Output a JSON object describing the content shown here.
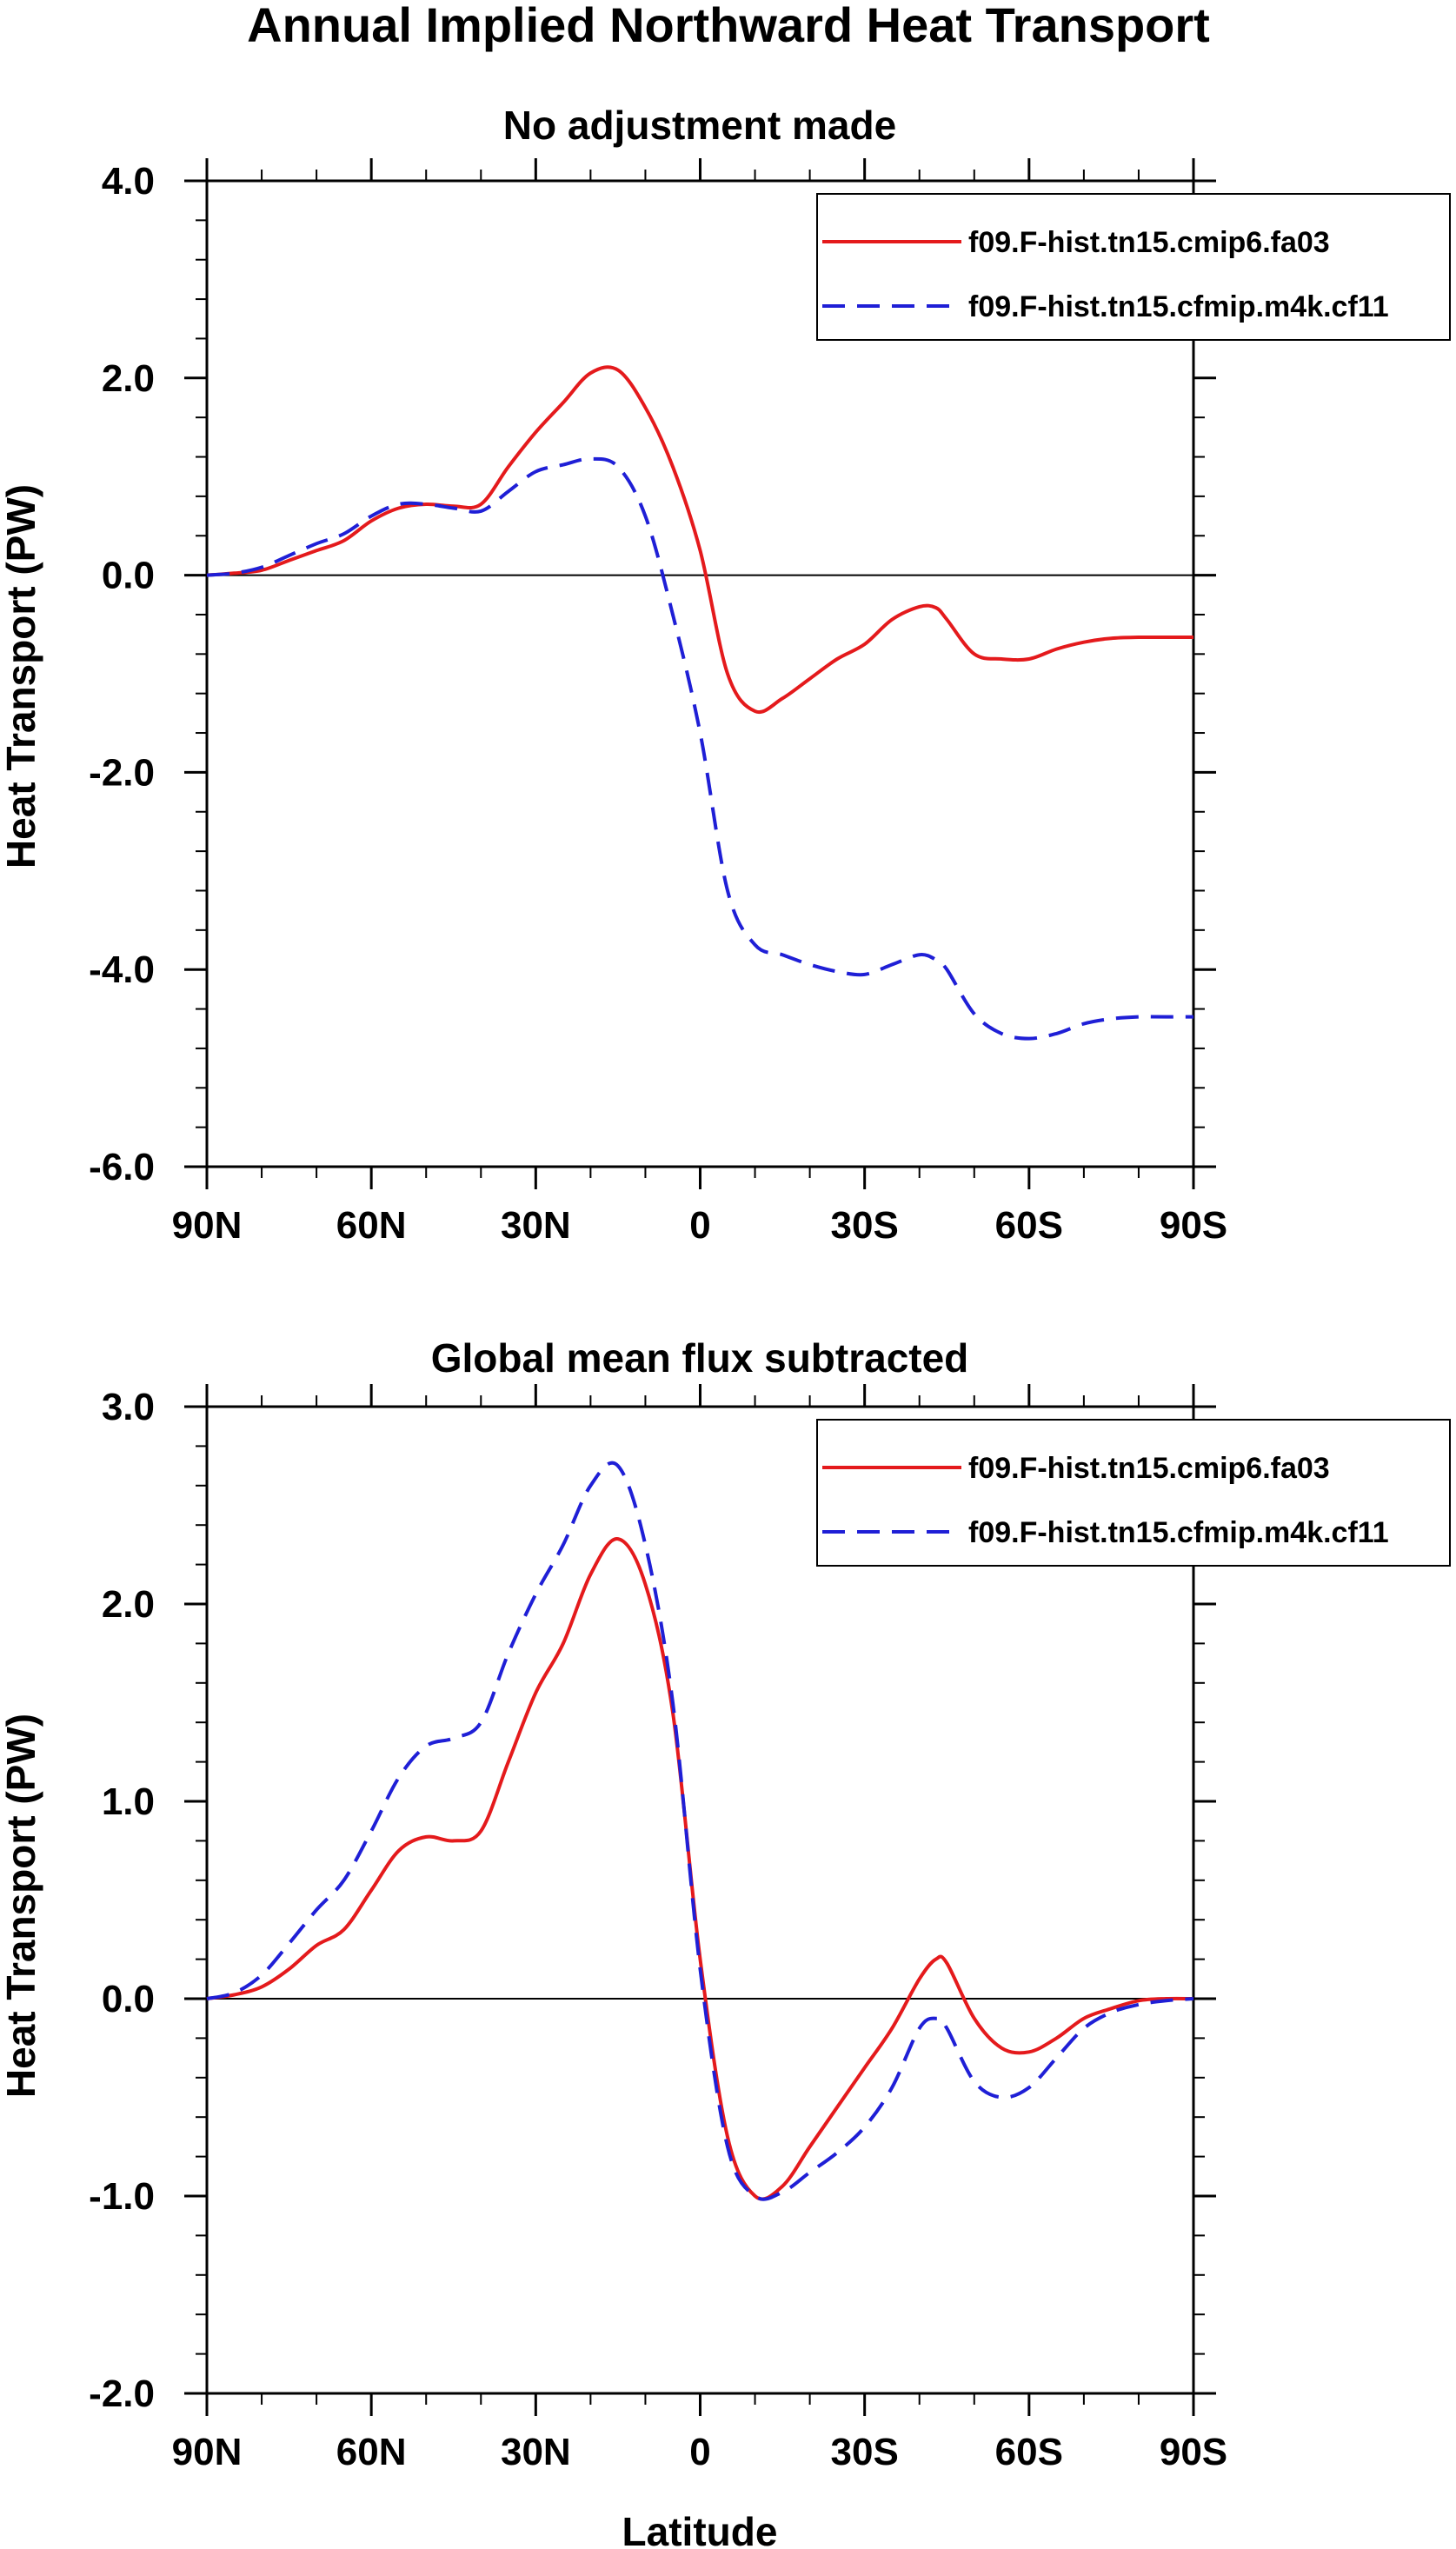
{
  "figure": {
    "title": "Annual Implied Northward Heat Transport",
    "xlabel": "Latitude"
  },
  "colors": {
    "series1": "#e41a1c",
    "series2": "#1f1fd6",
    "axis": "#000000"
  },
  "chart_data": [
    {
      "type": "line",
      "title": "No adjustment made",
      "xlabel": "",
      "ylabel": "Heat Transport (PW)",
      "xlim": [
        90,
        -90
      ],
      "ylim": [
        -6,
        4
      ],
      "xticks": [
        90,
        60,
        30,
        0,
        -30,
        -60,
        -90
      ],
      "xtick_labels": [
        "90N",
        "60N",
        "30N",
        "0",
        "30S",
        "60S",
        "90S"
      ],
      "yticks": [
        4,
        2,
        0,
        -2,
        -4,
        -6
      ],
      "ytick_labels": [
        "4.0",
        "2.0",
        "0.0",
        "-2.0",
        "-4.0",
        "-6.0"
      ],
      "legend_position": "top-right",
      "series": [
        {
          "name": "f09.F-hist.tn15.cmip6.fa03",
          "style": "solid",
          "x": [
            90,
            85,
            80,
            75,
            70,
            65,
            60,
            55,
            50,
            45,
            40,
            35,
            30,
            25,
            20,
            15,
            10,
            5,
            0,
            -5,
            -10,
            -15,
            -20,
            -25,
            -30,
            -35,
            -40,
            -43,
            -45,
            -50,
            -55,
            -60,
            -65,
            -70,
            -75,
            -80,
            -85,
            -90
          ],
          "y": [
            0,
            0.02,
            0.05,
            0.15,
            0.25,
            0.35,
            0.55,
            0.68,
            0.72,
            0.7,
            0.72,
            1.1,
            1.45,
            1.75,
            2.05,
            2.08,
            1.7,
            1.1,
            0.25,
            -1.0,
            -1.38,
            -1.25,
            -1.05,
            -0.85,
            -0.7,
            -0.45,
            -0.32,
            -0.33,
            -0.45,
            -0.8,
            -0.85,
            -0.85,
            -0.75,
            -0.68,
            -0.64,
            -0.63,
            -0.63,
            -0.63
          ]
        },
        {
          "name": "f09.F-hist.tn15.cfmip.m4k.cf11",
          "style": "dashed",
          "x": [
            90,
            85,
            80,
            75,
            70,
            65,
            60,
            55,
            50,
            45,
            40,
            35,
            30,
            25,
            20,
            15,
            10,
            5,
            0,
            -5,
            -10,
            -15,
            -20,
            -25,
            -30,
            -35,
            -40,
            -43,
            -45,
            -50,
            -55,
            -60,
            -65,
            -70,
            -75,
            -80,
            -85,
            -90
          ],
          "y": [
            0,
            0.02,
            0.08,
            0.2,
            0.32,
            0.42,
            0.6,
            0.72,
            0.72,
            0.68,
            0.65,
            0.85,
            1.05,
            1.12,
            1.18,
            1.1,
            0.6,
            -0.4,
            -1.6,
            -3.2,
            -3.75,
            -3.85,
            -3.95,
            -4.02,
            -4.05,
            -3.95,
            -3.85,
            -3.9,
            -4.0,
            -4.45,
            -4.65,
            -4.7,
            -4.65,
            -4.55,
            -4.5,
            -4.48,
            -4.48,
            -4.48
          ]
        }
      ]
    },
    {
      "type": "line",
      "title": "Global mean flux subtracted",
      "xlabel": "Latitude",
      "ylabel": "Heat Transport (PW)",
      "xlim": [
        90,
        -90
      ],
      "ylim": [
        -2,
        3
      ],
      "xticks": [
        90,
        60,
        30,
        0,
        -30,
        -60,
        -90
      ],
      "xtick_labels": [
        "90N",
        "60N",
        "30N",
        "0",
        "30S",
        "60S",
        "90S"
      ],
      "yticks": [
        3,
        2,
        1,
        0,
        -1,
        -2
      ],
      "ytick_labels": [
        "3.0",
        "2.0",
        "1.0",
        "0.0",
        "-1.0",
        "-2.0"
      ],
      "legend_position": "top-right",
      "series": [
        {
          "name": "f09.F-hist.tn15.cmip6.fa03",
          "style": "solid",
          "x": [
            90,
            85,
            80,
            75,
            70,
            65,
            60,
            55,
            50,
            45,
            40,
            35,
            30,
            25,
            20,
            15,
            10,
            5,
            0,
            -5,
            -10,
            -15,
            -20,
            -25,
            -30,
            -35,
            -40,
            -43,
            -45,
            -50,
            -55,
            -60,
            -65,
            -70,
            -75,
            -80,
            -85,
            -90
          ],
          "y": [
            0,
            0.02,
            0.06,
            0.15,
            0.27,
            0.35,
            0.55,
            0.75,
            0.82,
            0.8,
            0.85,
            1.2,
            1.55,
            1.8,
            2.15,
            2.33,
            2.1,
            1.45,
            0.2,
            -0.7,
            -1.0,
            -0.95,
            -0.75,
            -0.55,
            -0.35,
            -0.15,
            0.1,
            0.2,
            0.18,
            -0.1,
            -0.25,
            -0.27,
            -0.2,
            -0.1,
            -0.05,
            -0.01,
            0,
            0
          ]
        },
        {
          "name": "f09.F-hist.tn15.cfmip.m4k.cf11",
          "style": "dashed",
          "x": [
            90,
            85,
            80,
            75,
            70,
            65,
            60,
            55,
            50,
            45,
            40,
            35,
            30,
            25,
            20,
            15,
            10,
            5,
            0,
            -5,
            -10,
            -15,
            -20,
            -25,
            -30,
            -35,
            -40,
            -43,
            -45,
            -50,
            -55,
            -60,
            -65,
            -70,
            -75,
            -80,
            -85,
            -90
          ],
          "y": [
            0,
            0.03,
            0.12,
            0.28,
            0.45,
            0.6,
            0.85,
            1.12,
            1.28,
            1.32,
            1.4,
            1.75,
            2.05,
            2.3,
            2.6,
            2.7,
            2.3,
            1.5,
            0.15,
            -0.75,
            -1.0,
            -0.98,
            -0.88,
            -0.78,
            -0.65,
            -0.45,
            -0.15,
            -0.1,
            -0.15,
            -0.42,
            -0.5,
            -0.45,
            -0.3,
            -0.15,
            -0.07,
            -0.03,
            -0.01,
            0
          ]
        }
      ]
    }
  ]
}
